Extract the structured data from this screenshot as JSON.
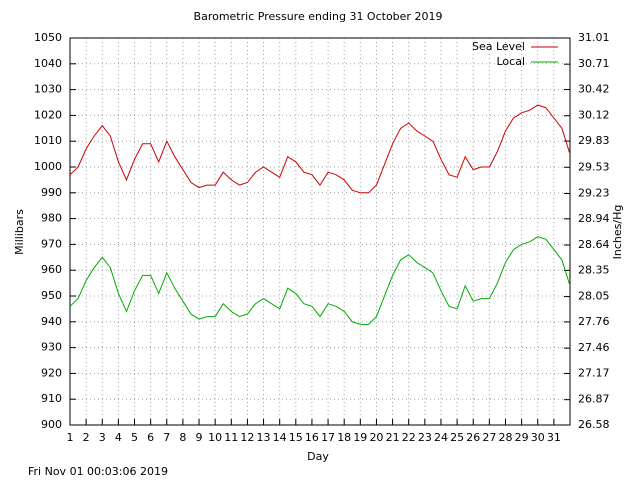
{
  "chart_data": {
    "type": "line",
    "title": "Barometric Pressure ending 31 October 2019",
    "xlabel": "Day",
    "ylabel": "Millibars",
    "y2label": "Inches/Hg",
    "footer": "Fri Nov 01 00:03:06 2019",
    "x": [
      1,
      1.5,
      2,
      2.5,
      3,
      3.5,
      4,
      4.5,
      5,
      5.5,
      6,
      6.5,
      7,
      7.5,
      8,
      8.5,
      9,
      9.5,
      10,
      10.5,
      11,
      11.5,
      12,
      12.5,
      13,
      13.5,
      14,
      14.5,
      15,
      15.5,
      16,
      16.5,
      17,
      17.5,
      18,
      18.5,
      19,
      19.5,
      20,
      20.5,
      21,
      21.5,
      22,
      22.5,
      23,
      23.5,
      24,
      24.5,
      25,
      25.5,
      26,
      26.5,
      27,
      27.5,
      28,
      28.5,
      29,
      29.5,
      30,
      30.5,
      31,
      31.5,
      32
    ],
    "series": [
      {
        "name": "Sea Level",
        "color": "#cc0000",
        "values": [
          997,
          1000,
          1007,
          1012,
          1016,
          1012,
          1002,
          995,
          1003,
          1009,
          1009,
          1002,
          1010,
          1004,
          999,
          994,
          992,
          993,
          993,
          998,
          995,
          993,
          994,
          998,
          1000,
          998,
          996,
          1004,
          1002,
          998,
          997,
          993,
          998,
          997,
          995,
          991,
          990,
          990,
          993,
          1001,
          1009,
          1015,
          1017,
          1014,
          1012,
          1010,
          1003,
          997,
          996,
          1004,
          999,
          1000,
          1000,
          1006,
          1014,
          1019,
          1021,
          1022,
          1024,
          1023,
          1019,
          1015,
          1005
        ]
      },
      {
        "name": "Local",
        "color": "#00aa00",
        "values": [
          946,
          949,
          956,
          961,
          965,
          961,
          951,
          944,
          952,
          958,
          958,
          951,
          959,
          953,
          948,
          943,
          941,
          942,
          942,
          947,
          944,
          942,
          943,
          947,
          949,
          947,
          945,
          953,
          951,
          947,
          946,
          942,
          947,
          946,
          944,
          940,
          939,
          939,
          942,
          950,
          958,
          964,
          966,
          963,
          961,
          959,
          952,
          946,
          945,
          954,
          948,
          949,
          949,
          955,
          963,
          968,
          970,
          971,
          973,
          972,
          968,
          964,
          954
        ]
      }
    ],
    "xlim": [
      1,
      32
    ],
    "xticks": [
      1,
      2,
      3,
      4,
      5,
      6,
      7,
      8,
      9,
      10,
      11,
      12,
      13,
      14,
      15,
      16,
      17,
      18,
      19,
      20,
      21,
      22,
      23,
      24,
      25,
      26,
      27,
      28,
      29,
      30,
      31
    ],
    "ylim": [
      900,
      1050
    ],
    "yticks": [
      900,
      910,
      920,
      930,
      940,
      950,
      960,
      970,
      980,
      990,
      1000,
      1010,
      1020,
      1030,
      1040,
      1050
    ],
    "y2lim": [
      26.58,
      31.01
    ],
    "y2ticks": [
      26.58,
      26.87,
      27.17,
      27.46,
      27.76,
      28.05,
      28.35,
      28.64,
      28.94,
      29.23,
      29.53,
      29.83,
      30.12,
      30.42,
      30.71,
      31.01
    ],
    "grid": true,
    "legend": "top-right"
  }
}
